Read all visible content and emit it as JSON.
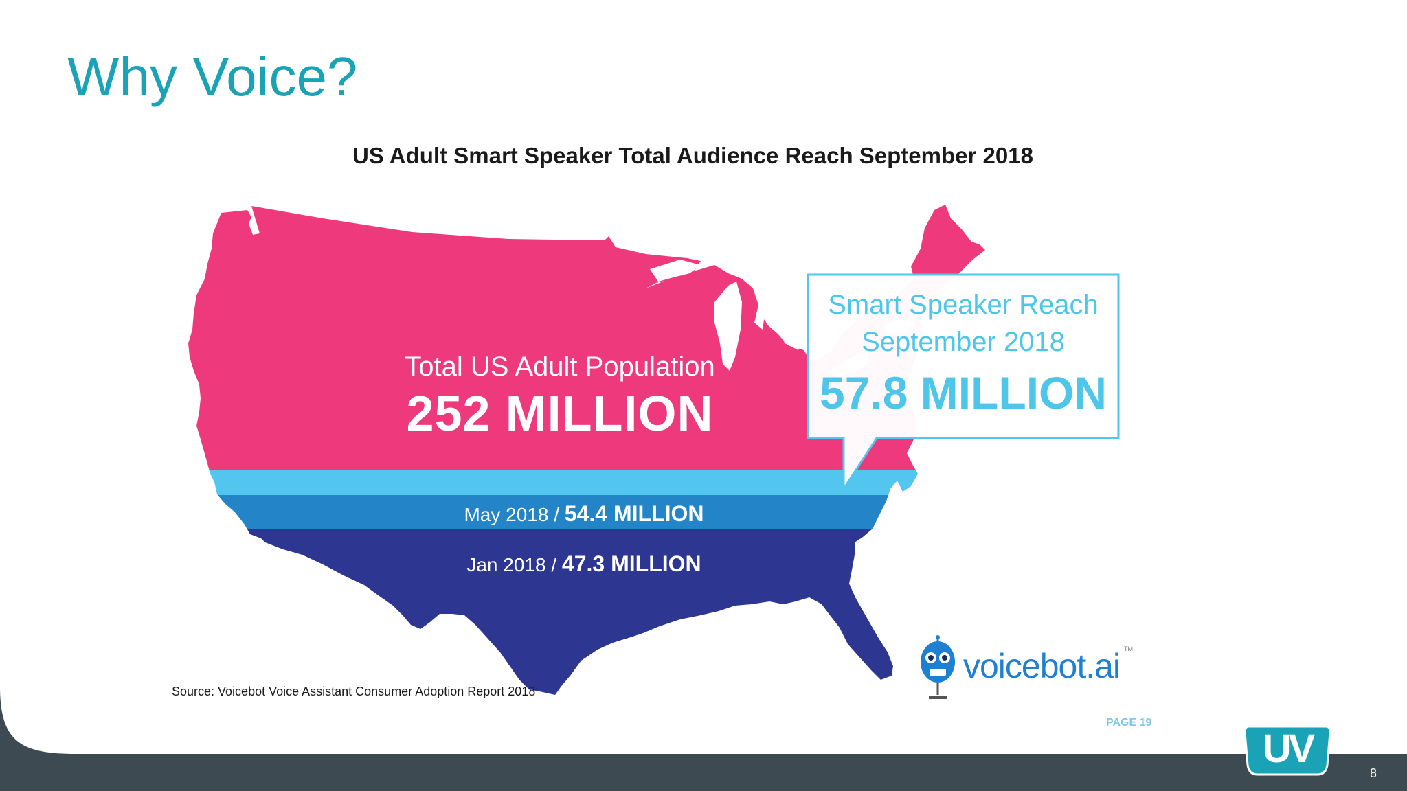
{
  "slide": {
    "title": "Why Voice?",
    "slide_number": "8",
    "footer_logo_text": "UV"
  },
  "infographic": {
    "title": "US Adult Smart Speaker Total Audience Reach September 2018",
    "population_label": "Total US Adult Population",
    "population_value": "252 MILLION",
    "callout_line1": "Smart Speaker Reach",
    "callout_line2": "September 2018",
    "callout_value": "57.8 MILLION",
    "may_label": "May 2018 /",
    "may_value": "54.4 MILLION",
    "jan_label": "Jan 2018 /",
    "jan_value": "47.3 MILLION",
    "source": "Source: Voicebot Voice Assistant Consumer Adoption Report 2018",
    "page_ref": "PAGE 19",
    "brand_name": "voicebot.ai",
    "brand_tm": "TM"
  },
  "colors": {
    "title_teal": "#1aa2b6",
    "population_pink": "#ee3a7d",
    "sept_light_blue": "#52c6ee",
    "may_mid_blue": "#2385c7",
    "jan_navy": "#2d3690",
    "footer_dark": "#3d4a51",
    "uv_teal": "#1aa2b6"
  },
  "chart_data": {
    "type": "table",
    "title": "US Adult Smart Speaker Total Audience Reach September 2018",
    "categories": [
      "Total US Adult Population",
      "Sep 2018",
      "May 2018",
      "Jan 2018"
    ],
    "values": [
      252,
      57.8,
      54.4,
      47.3
    ],
    "units": "MILLION"
  }
}
